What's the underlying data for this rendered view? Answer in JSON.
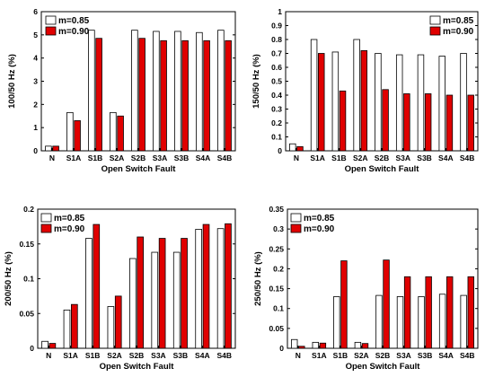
{
  "colors": {
    "m085": "#ffffff",
    "m090": "#e00000",
    "stroke": "#000000"
  },
  "chart_data": [
    {
      "type": "bar",
      "categories": [
        "N",
        "S1A",
        "S1B",
        "S2A",
        "S2B",
        "S3A",
        "S3B",
        "S4A",
        "S4B"
      ],
      "series": [
        {
          "name": "m=0.85",
          "values": [
            0.2,
            1.65,
            5.2,
            1.65,
            5.2,
            5.15,
            5.15,
            5.1,
            5.2
          ]
        },
        {
          "name": "m=0.90",
          "values": [
            0.2,
            1.3,
            4.85,
            1.5,
            4.85,
            4.75,
            4.75,
            4.75,
            4.75
          ]
        }
      ],
      "ylim": [
        0,
        6
      ],
      "yticks": [
        0,
        1,
        2,
        3,
        4,
        5,
        6
      ],
      "ytick_labels": [
        "0",
        "1",
        "2",
        "3",
        "4",
        "5",
        "6"
      ],
      "xlabel": "Open Switch Fault",
      "ylabel": "100/50 Hz (%)",
      "legend": "top-left",
      "grid": false
    },
    {
      "type": "bar",
      "categories": [
        "N",
        "S1A",
        "S1B",
        "S2A",
        "S2B",
        "S3A",
        "S3B",
        "S4A",
        "S4B"
      ],
      "series": [
        {
          "name": "m=0.85",
          "values": [
            0.05,
            0.8,
            0.71,
            0.8,
            0.7,
            0.69,
            0.69,
            0.68,
            0.7
          ]
        },
        {
          "name": "m=0.90",
          "values": [
            0.03,
            0.7,
            0.43,
            0.72,
            0.44,
            0.41,
            0.41,
            0.4,
            0.4
          ]
        }
      ],
      "ylim": [
        0,
        1
      ],
      "yticks": [
        0,
        0.1,
        0.2,
        0.3,
        0.4,
        0.5,
        0.6,
        0.7,
        0.8,
        0.9,
        1
      ],
      "ytick_labels": [
        "0",
        "0.1",
        "0.2",
        "0.3",
        "0.4",
        "0.5",
        "0.6",
        "0.7",
        "0.8",
        "0.9",
        "1"
      ],
      "xlabel": "Open Switch Fault",
      "ylabel": "150/50 Hz (%)",
      "legend": "top-right",
      "grid": false
    },
    {
      "type": "bar",
      "categories": [
        "N",
        "S1A",
        "S1B",
        "S2A",
        "S2B",
        "S3A",
        "S3B",
        "S4A",
        "S4B"
      ],
      "series": [
        {
          "name": "m=0.85",
          "values": [
            0.01,
            0.055,
            0.158,
            0.06,
            0.129,
            0.138,
            0.138,
            0.171,
            0.172
          ]
        },
        {
          "name": "m=0.90",
          "values": [
            0.007,
            0.063,
            0.178,
            0.075,
            0.16,
            0.158,
            0.158,
            0.178,
            0.179
          ]
        }
      ],
      "ylim": [
        0,
        0.2
      ],
      "yticks": [
        0,
        0.05,
        0.1,
        0.15,
        0.2
      ],
      "ytick_labels": [
        "0",
        "0.05",
        "0.1",
        "0.15",
        "0.2"
      ],
      "xlabel": "Open Switch Fault",
      "ylabel": "200/50 Hz (%)",
      "legend": "top-left",
      "grid": false
    },
    {
      "type": "bar",
      "categories": [
        "N",
        "S1A",
        "S1B",
        "S2A",
        "S2B",
        "S3A",
        "S3B",
        "S4A",
        "S4B"
      ],
      "series": [
        {
          "name": "m=0.85",
          "values": [
            0.022,
            0.015,
            0.13,
            0.015,
            0.133,
            0.13,
            0.13,
            0.136,
            0.133
          ]
        },
        {
          "name": "m=0.90",
          "values": [
            0.005,
            0.013,
            0.22,
            0.012,
            0.222,
            0.18,
            0.18,
            0.18,
            0.18
          ]
        }
      ],
      "ylim": [
        0,
        0.35
      ],
      "yticks": [
        0,
        0.05,
        0.1,
        0.15,
        0.2,
        0.25,
        0.3,
        0.35
      ],
      "ytick_labels": [
        "0",
        "0.05",
        "0.1",
        "0.15",
        "0.2",
        "0.25",
        "0.3",
        "0.35"
      ],
      "xlabel": "Open Switch Fault",
      "ylabel": "250/50 Hz (%)",
      "legend": "top-left",
      "grid": false
    }
  ]
}
